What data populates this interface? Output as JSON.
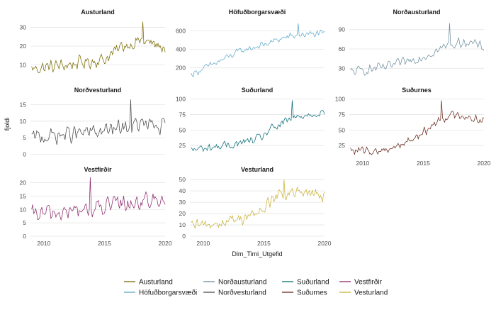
{
  "chart_data": {
    "type": "line",
    "xlabel": "Dim_Timi_Utgefid",
    "ylabel": "fjoldi",
    "x_ticks": [
      2010,
      2015,
      2020
    ],
    "x_range": [
      2008.9,
      2020.0
    ],
    "grid": true,
    "legend_position": "bottom",
    "series": [
      {
        "name": "Austurland",
        "color": "#7a6a00",
        "ylim": [
          3,
          34
        ],
        "y_ticks": [
          10,
          20,
          30
        ],
        "trend": [
          [
            2009,
            8
          ],
          [
            2012,
            10
          ],
          [
            2015,
            13
          ],
          [
            2016.5,
            20
          ],
          [
            2018,
            23
          ],
          [
            2020,
            19
          ]
        ],
        "noise": 4.5,
        "peak": [
          2018.2,
          33
        ]
      },
      {
        "name": "Höfuðborgarsvæði",
        "color": "#5fa8c8",
        "ylim": [
          90,
          720
        ],
        "y_ticks": [
          200,
          400,
          600
        ],
        "trend": [
          [
            2009,
            130
          ],
          [
            2011,
            250
          ],
          [
            2013,
            380
          ],
          [
            2015,
            450
          ],
          [
            2016.5,
            520
          ],
          [
            2018,
            560
          ],
          [
            2020,
            570
          ]
        ],
        "noise": 45,
        "peak": [
          2017.8,
          680
        ]
      },
      {
        "name": "Norðausturland",
        "color": "#6f8f9f",
        "ylim": [
          15,
          105
        ],
        "y_ticks": [
          30,
          60,
          90
        ],
        "trend": [
          [
            2009,
            24
          ],
          [
            2012,
            32
          ],
          [
            2015,
            48
          ],
          [
            2017,
            65
          ],
          [
            2018.5,
            72
          ],
          [
            2020,
            62
          ]
        ],
        "noise": 9,
        "peak": [
          2017.2,
          100
        ]
      },
      {
        "name": "Norðvesturland",
        "color": "#4a4a4a",
        "ylim": [
          -0.5,
          17
        ],
        "y_ticks": [
          0,
          5,
          10,
          15
        ],
        "trend": [
          [
            2009,
            5
          ],
          [
            2012,
            6
          ],
          [
            2015,
            7
          ],
          [
            2018,
            9
          ],
          [
            2020,
            8
          ]
        ],
        "noise": 3,
        "peak": [
          2017.2,
          16.5
        ]
      },
      {
        "name": "Suðurland",
        "color": "#0a6c7a",
        "ylim": [
          8,
          102
        ],
        "y_ticks": [
          25,
          50,
          75,
          100
        ],
        "trend": [
          [
            2009,
            18
          ],
          [
            2012,
            25
          ],
          [
            2014.5,
            35
          ],
          [
            2015.5,
            50
          ],
          [
            2017,
            65
          ],
          [
            2018.5,
            75
          ],
          [
            2020,
            80
          ]
        ],
        "noise": 9,
        "peak": [
          2017.3,
          98
        ]
      },
      {
        "name": "Suðurnes",
        "color": "#6a2a1e",
        "ylim": [
          8,
          102
        ],
        "y_ticks": [
          25,
          50,
          75,
          100
        ],
        "trend": [
          [
            2009,
            17
          ],
          [
            2011,
            15
          ],
          [
            2013,
            25
          ],
          [
            2015,
            45
          ],
          [
            2016.5,
            70
          ],
          [
            2018,
            75
          ],
          [
            2020,
            65
          ]
        ],
        "noise": 9,
        "peak": [
          2016.5,
          98
        ]
      },
      {
        "name": "Vestfirðir",
        "color": "#8b2a6a",
        "ylim": [
          0,
          22
        ],
        "y_ticks": [
          0,
          5,
          10,
          15,
          20
        ],
        "trend": [
          [
            2009,
            8
          ],
          [
            2012,
            9
          ],
          [
            2015,
            11
          ],
          [
            2018,
            13
          ],
          [
            2020,
            14
          ]
        ],
        "noise": 4,
        "peak": [
          2013.8,
          22
        ]
      },
      {
        "name": "Vesturland",
        "color": "#c9b23a",
        "ylim": [
          0,
          52
        ],
        "y_ticks": [
          0,
          10,
          20,
          30,
          40,
          50
        ],
        "trend": [
          [
            2009,
            8
          ],
          [
            2012,
            13
          ],
          [
            2014.5,
            20
          ],
          [
            2016,
            35
          ],
          [
            2017.5,
            38
          ],
          [
            2020,
            36
          ]
        ],
        "noise": 7,
        "peak": [
          2016.7,
          50
        ]
      }
    ]
  }
}
